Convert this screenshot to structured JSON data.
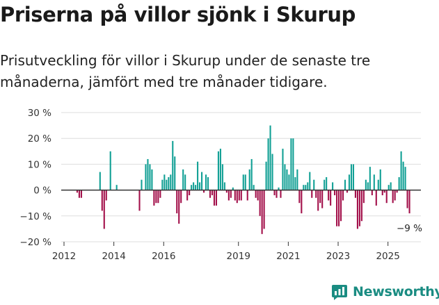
{
  "title": "Priserna på villor sjönk i Skurup",
  "subtitle": "Prisutveckling för villor i Skurup under de senaste tre månaderna, jämfört med tre månader tidigare.",
  "brand": {
    "name": "Newsworthy",
    "color": "#1a8c82",
    "icon": "newsworthy-logo-icon"
  },
  "colors": {
    "positive": "#12a095",
    "negative": "#a3114b",
    "zero_line": "#333333",
    "grid": "#dddddd"
  },
  "chart_data": {
    "type": "bar",
    "title": "Priserna på villor sjönk i Skurup",
    "xlabel": "",
    "ylabel": "",
    "ylim": [
      -20,
      30
    ],
    "y_ticks": [
      {
        "value": 30,
        "label": "30 %"
      },
      {
        "value": 20,
        "label": "20 %"
      },
      {
        "value": 10,
        "label": "10 %"
      },
      {
        "value": 0,
        "label": "0 %"
      },
      {
        "value": -10,
        "label": "−10 %"
      },
      {
        "value": -20,
        "label": "−20 %"
      }
    ],
    "x_ticks": [
      {
        "year": 2012,
        "label": "2012"
      },
      {
        "year": 2014,
        "label": "2014"
      },
      {
        "year": 2016,
        "label": "2016"
      },
      {
        "year": 2019,
        "label": "2019"
      },
      {
        "year": 2021,
        "label": "2021"
      },
      {
        "year": 2023,
        "label": "2023"
      },
      {
        "year": 2025,
        "label": "2025"
      }
    ],
    "start": "2012-01",
    "frequency": "monthly",
    "values": [
      null,
      null,
      null,
      null,
      null,
      null,
      -1,
      -3,
      -3,
      null,
      null,
      null,
      null,
      null,
      null,
      null,
      null,
      7,
      -8,
      -15,
      -4,
      null,
      15,
      null,
      null,
      2,
      null,
      null,
      null,
      null,
      null,
      null,
      null,
      null,
      null,
      null,
      -8,
      4,
      null,
      10,
      12,
      10,
      8,
      -6,
      -5,
      -5,
      -3,
      4,
      6,
      4,
      5,
      6,
      19,
      13,
      -9,
      -13,
      -5,
      8,
      6,
      -4,
      -2,
      2,
      3,
      2,
      11,
      3,
      7,
      -1,
      6,
      5,
      -3,
      -2,
      -6,
      -6,
      15,
      16,
      10,
      3,
      -1,
      -4,
      -3,
      1,
      -4,
      -5,
      -4,
      -4,
      6,
      6,
      -4,
      8,
      12,
      2,
      -3,
      -4,
      -10,
      -17,
      -15,
      11,
      20,
      25,
      14,
      -2,
      -3,
      1,
      -3,
      16,
      10,
      8,
      6,
      20,
      20,
      5,
      8,
      -5,
      -9,
      2,
      2,
      3,
      7,
      -3,
      4,
      -3,
      -8,
      -5,
      -7,
      4,
      5,
      -4,
      -6,
      3,
      -2,
      -14,
      -14,
      -12,
      -4,
      4,
      -1,
      6,
      10,
      10,
      -3,
      -15,
      -14,
      -12,
      -5,
      4,
      3,
      9,
      -2,
      6,
      -6,
      4,
      8,
      -2,
      -1,
      -5,
      2,
      3,
      -5,
      -4,
      -1,
      5,
      15,
      11,
      9,
      -7,
      -9
    ]
  },
  "annotation": {
    "text": "−9 %",
    "value": -9
  }
}
